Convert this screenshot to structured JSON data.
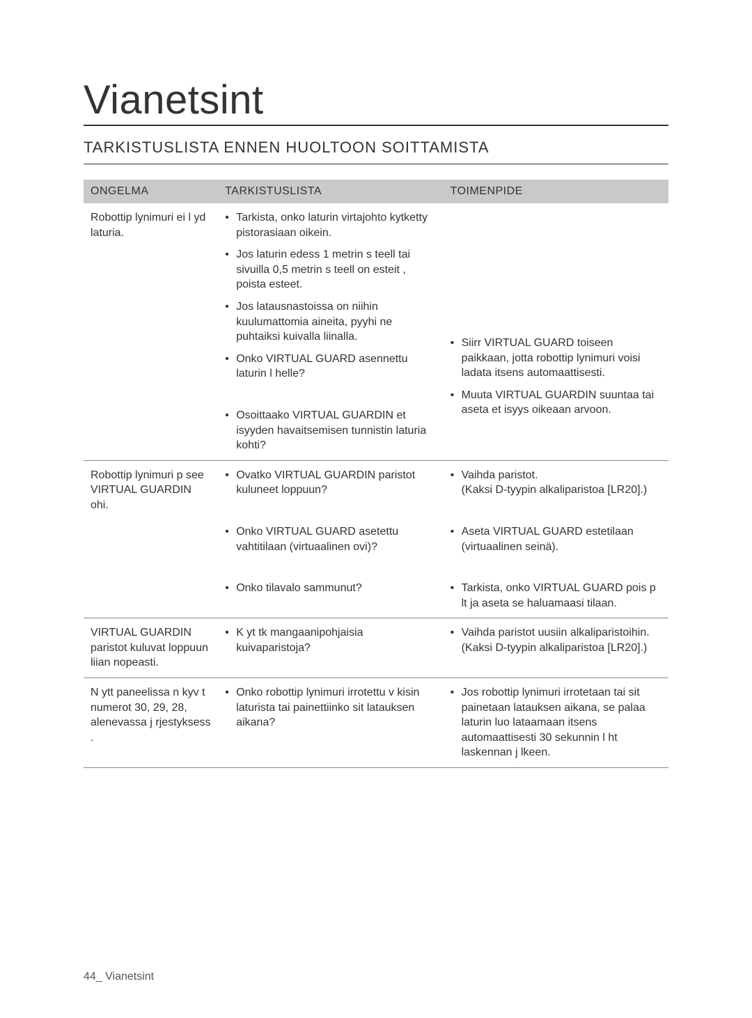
{
  "page": {
    "title": "Vianetsint",
    "section_title": "TARKISTUSLISTA ENNEN HUOLTOON SOITTAMISTA",
    "footer": "44_ Vianetsint"
  },
  "table": {
    "columns": {
      "problem": "ONGELMA",
      "checklist": "TARKISTUSLISTA",
      "action": "TOIMENPIDE"
    },
    "rows": [
      {
        "problem": "Robottip lynimuri ei l yd  laturia.",
        "checklist": [
          "Tarkista, onko laturin virtajohto kytketty pistorasiaan oikein.",
          "Jos laturin edess  1 metrin s teell  tai sivuilla 0,5 metrin s teell  on esteit , poista esteet.",
          "Jos latausnastoissa on niihin kuulumattomia aineita, pyyhi ne puhtaiksi kuivalla liinalla.",
          "Onko VIRTUAL GUARD asennettu laturin l helle?",
          "Osoittaako VIRTUAL GUARDIN et isyyden havaitsemisen tunnistin laturia kohti?"
        ],
        "actions": [
          "Siirr  VIRTUAL GUARD toiseen paikkaan, jotta robottip lynimuri voisi ladata itsens  automaattisesti.",
          "Muuta VIRTUAL GUARDIN suuntaa tai aseta et isyys oikeaan arvoon."
        ]
      },
      {
        "problem": "Robottip lynimuri p   see VIRTUAL GUARDIN ohi.",
        "checklist": [
          "Ovatko VIRTUAL GUARDIN paristot kuluneet loppuun?",
          "Onko VIRTUAL GUARD asetettu vahtitilaan (virtuaalinen ovi)?",
          "Onko tilavalo sammunut?"
        ],
        "actions": [
          "Vaihda paristot.\n(Kaksi D-tyypin alkaliparistoa [LR20].)",
          "Aseta VIRTUAL GUARD estetilaan (virtuaalinen seinä).",
          "Tarkista, onko VIRTUAL GUARD pois p  lt  ja aseta se haluamaasi tilaan."
        ]
      },
      {
        "problem": "VIRTUAL GUARDIN paristot kuluvat loppuun liian nopeasti.",
        "checklist": [
          "K yt tk  mangaanipohjaisia kuivaparistoja?"
        ],
        "actions": [
          "Vaihda paristot uusiin alkaliparistoihin.\n(Kaksi D-tyypin alkaliparistoa [LR20].)"
        ]
      },
      {
        "problem": "N ytt paneelissa n kyv t numerot 30, 29, 28, alenevassa j rjestyksess .",
        "checklist": [
          "Onko robottip lynimuri irrotettu v kisin laturista tai painettiinko sit  latauksen aikana?"
        ],
        "actions": [
          "Jos robottip lynimuri irrotetaan tai sit  painetaan latauksen aikana, se palaa laturin luo lataamaan itsens  automaattisesti 30 sekunnin l ht laskennan j lkeen."
        ]
      }
    ]
  }
}
